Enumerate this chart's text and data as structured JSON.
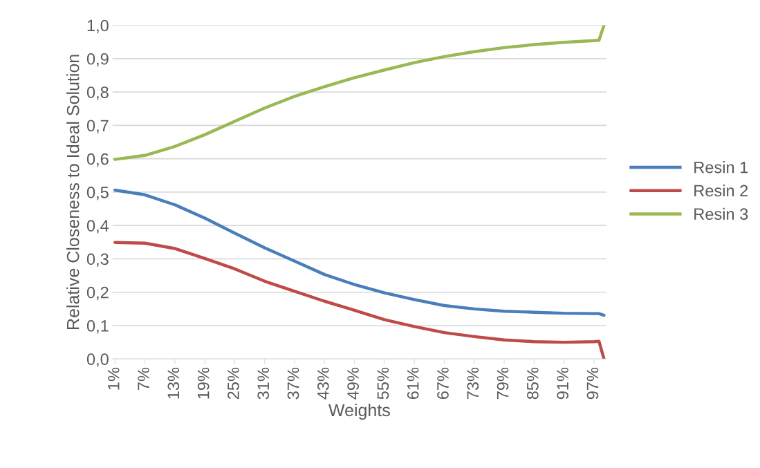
{
  "chart_data": {
    "type": "line",
    "xlabel": "Weights",
    "ylabel": "Relative Closeness to Ideal Solution",
    "x": [
      1,
      7,
      13,
      19,
      25,
      31,
      37,
      43,
      49,
      55,
      61,
      67,
      73,
      79,
      85,
      91,
      97,
      98,
      99
    ],
    "xlim": [
      0.5,
      99.5
    ],
    "xticks": [
      {
        "value": 1,
        "label": "1%"
      },
      {
        "value": 7,
        "label": "7%"
      },
      {
        "value": 13,
        "label": "13%"
      },
      {
        "value": 19,
        "label": "19%"
      },
      {
        "value": 25,
        "label": "25%"
      },
      {
        "value": 31,
        "label": "31%"
      },
      {
        "value": 37,
        "label": "37%"
      },
      {
        "value": 43,
        "label": "43%"
      },
      {
        "value": 49,
        "label": "49%"
      },
      {
        "value": 55,
        "label": "55%"
      },
      {
        "value": 61,
        "label": "61%"
      },
      {
        "value": 67,
        "label": "67%"
      },
      {
        "value": 73,
        "label": "73%"
      },
      {
        "value": 79,
        "label": "79%"
      },
      {
        "value": 85,
        "label": "85%"
      },
      {
        "value": 91,
        "label": "91%"
      },
      {
        "value": 97,
        "label": "97%"
      }
    ],
    "ylim": [
      0,
      1
    ],
    "yticks": [
      {
        "value": 0,
        "label": "0,0"
      },
      {
        "value": 0.1,
        "label": "0,1"
      },
      {
        "value": 0.2,
        "label": "0,2"
      },
      {
        "value": 0.3,
        "label": "0,3"
      },
      {
        "value": 0.4,
        "label": "0,4"
      },
      {
        "value": 0.5,
        "label": "0,5"
      },
      {
        "value": 0.6,
        "label": "0,6"
      },
      {
        "value": 0.7,
        "label": "0,7"
      },
      {
        "value": 0.8,
        "label": "0,8"
      },
      {
        "value": 0.9,
        "label": "0,9"
      },
      {
        "value": 1,
        "label": "1,0"
      }
    ],
    "grid": "y",
    "legend": "right",
    "marker": "none",
    "line_style": "solid",
    "series": [
      {
        "name": "Resin 1",
        "color": "#4a7ebb",
        "values": [
          0.506,
          0.492,
          0.462,
          0.422,
          0.377,
          0.333,
          0.293,
          0.253,
          0.223,
          0.198,
          0.178,
          0.16,
          0.15,
          0.143,
          0.14,
          0.137,
          0.136,
          0.136,
          0.131
        ]
      },
      {
        "name": "Resin 2",
        "color": "#be4b48",
        "values": [
          0.349,
          0.347,
          0.331,
          0.301,
          0.27,
          0.233,
          0.203,
          0.173,
          0.146,
          0.118,
          0.097,
          0.079,
          0.067,
          0.057,
          0.052,
          0.05,
          0.052,
          0.053,
          0.0
        ]
      },
      {
        "name": "Resin 3",
        "color": "#98b954",
        "values": [
          0.598,
          0.61,
          0.637,
          0.672,
          0.712,
          0.752,
          0.787,
          0.816,
          0.843,
          0.866,
          0.888,
          0.906,
          0.921,
          0.933,
          0.942,
          0.949,
          0.954,
          0.955,
          1.0
        ]
      }
    ]
  }
}
